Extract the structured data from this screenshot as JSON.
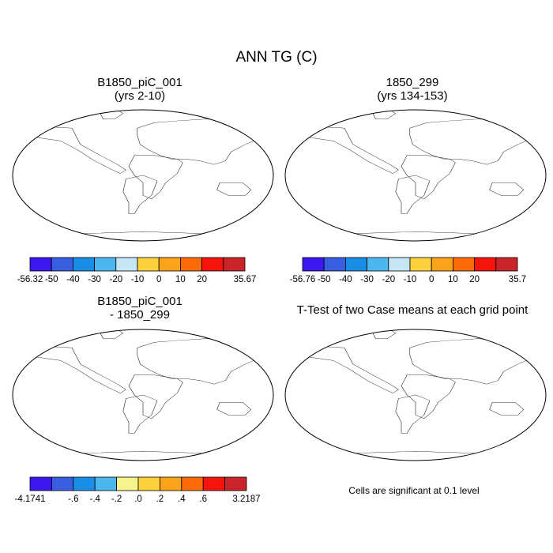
{
  "title": "ANN TG (C)",
  "colors": {
    "cool": [
      "#3c17f0",
      "#3a5ee0",
      "#1a8de6",
      "#4cb7ec",
      "#c6e6f5",
      "#fcd03a",
      "#fba31a",
      "#fc6a0a",
      "#f5140c",
      "#c8242a"
    ],
    "diff": [
      "#3c17f0",
      "#3a5ee0",
      "#1a8de6",
      "#4cb7ec",
      "#f6f48e",
      "#fcd03a",
      "#fba31a",
      "#fc6a0a",
      "#f5140c",
      "#c8242a"
    ],
    "sig": "#f0000a"
  },
  "panels": [
    {
      "name": "b1850",
      "line1": "B1850_piC_001",
      "line2": "(yrs 2-10)"
    },
    {
      "name": "1850",
      "line1": "1850_299",
      "line2": "(yrs 134-153)"
    },
    {
      "name": "diff",
      "line1": "B1850_piC_001",
      "line2": "- 1850_299"
    },
    {
      "name": "ttest",
      "line1": "T-Test of two Case means at each grid point",
      "line2": ""
    }
  ],
  "note": "Cells are significant at 0.1 level",
  "chart_data": [
    {
      "type": "heatmap",
      "title": "B1850_piC_001 (yrs 2-10)",
      "colorbar": {
        "ticks": [
          "-56.32",
          "-50",
          "-40",
          "-30",
          "-20",
          "-10",
          "0",
          "10",
          "20",
          "35.67"
        ],
        "min": -56.32,
        "max": 35.67
      }
    },
    {
      "type": "heatmap",
      "title": "1850_299 (yrs 134-153)",
      "colorbar": {
        "ticks": [
          "-56.76",
          "-50",
          "-40",
          "-30",
          "-20",
          "-10",
          "0",
          "10",
          "20",
          "35.7"
        ],
        "min": -56.76,
        "max": 35.7
      }
    },
    {
      "type": "heatmap",
      "title": "B1850_piC_001 - 1850_299",
      "colorbar": {
        "ticks": [
          "-4.1741",
          "-.6",
          "-.4",
          "-.2",
          ".0",
          ".2",
          ".4",
          ".6",
          "3.2187"
        ],
        "min": -4.1741,
        "max": 3.2187
      }
    },
    {
      "type": "heatmap",
      "title": "T-Test of two Case means at each grid point",
      "note": "Cells are significant at 0.1 level"
    }
  ]
}
